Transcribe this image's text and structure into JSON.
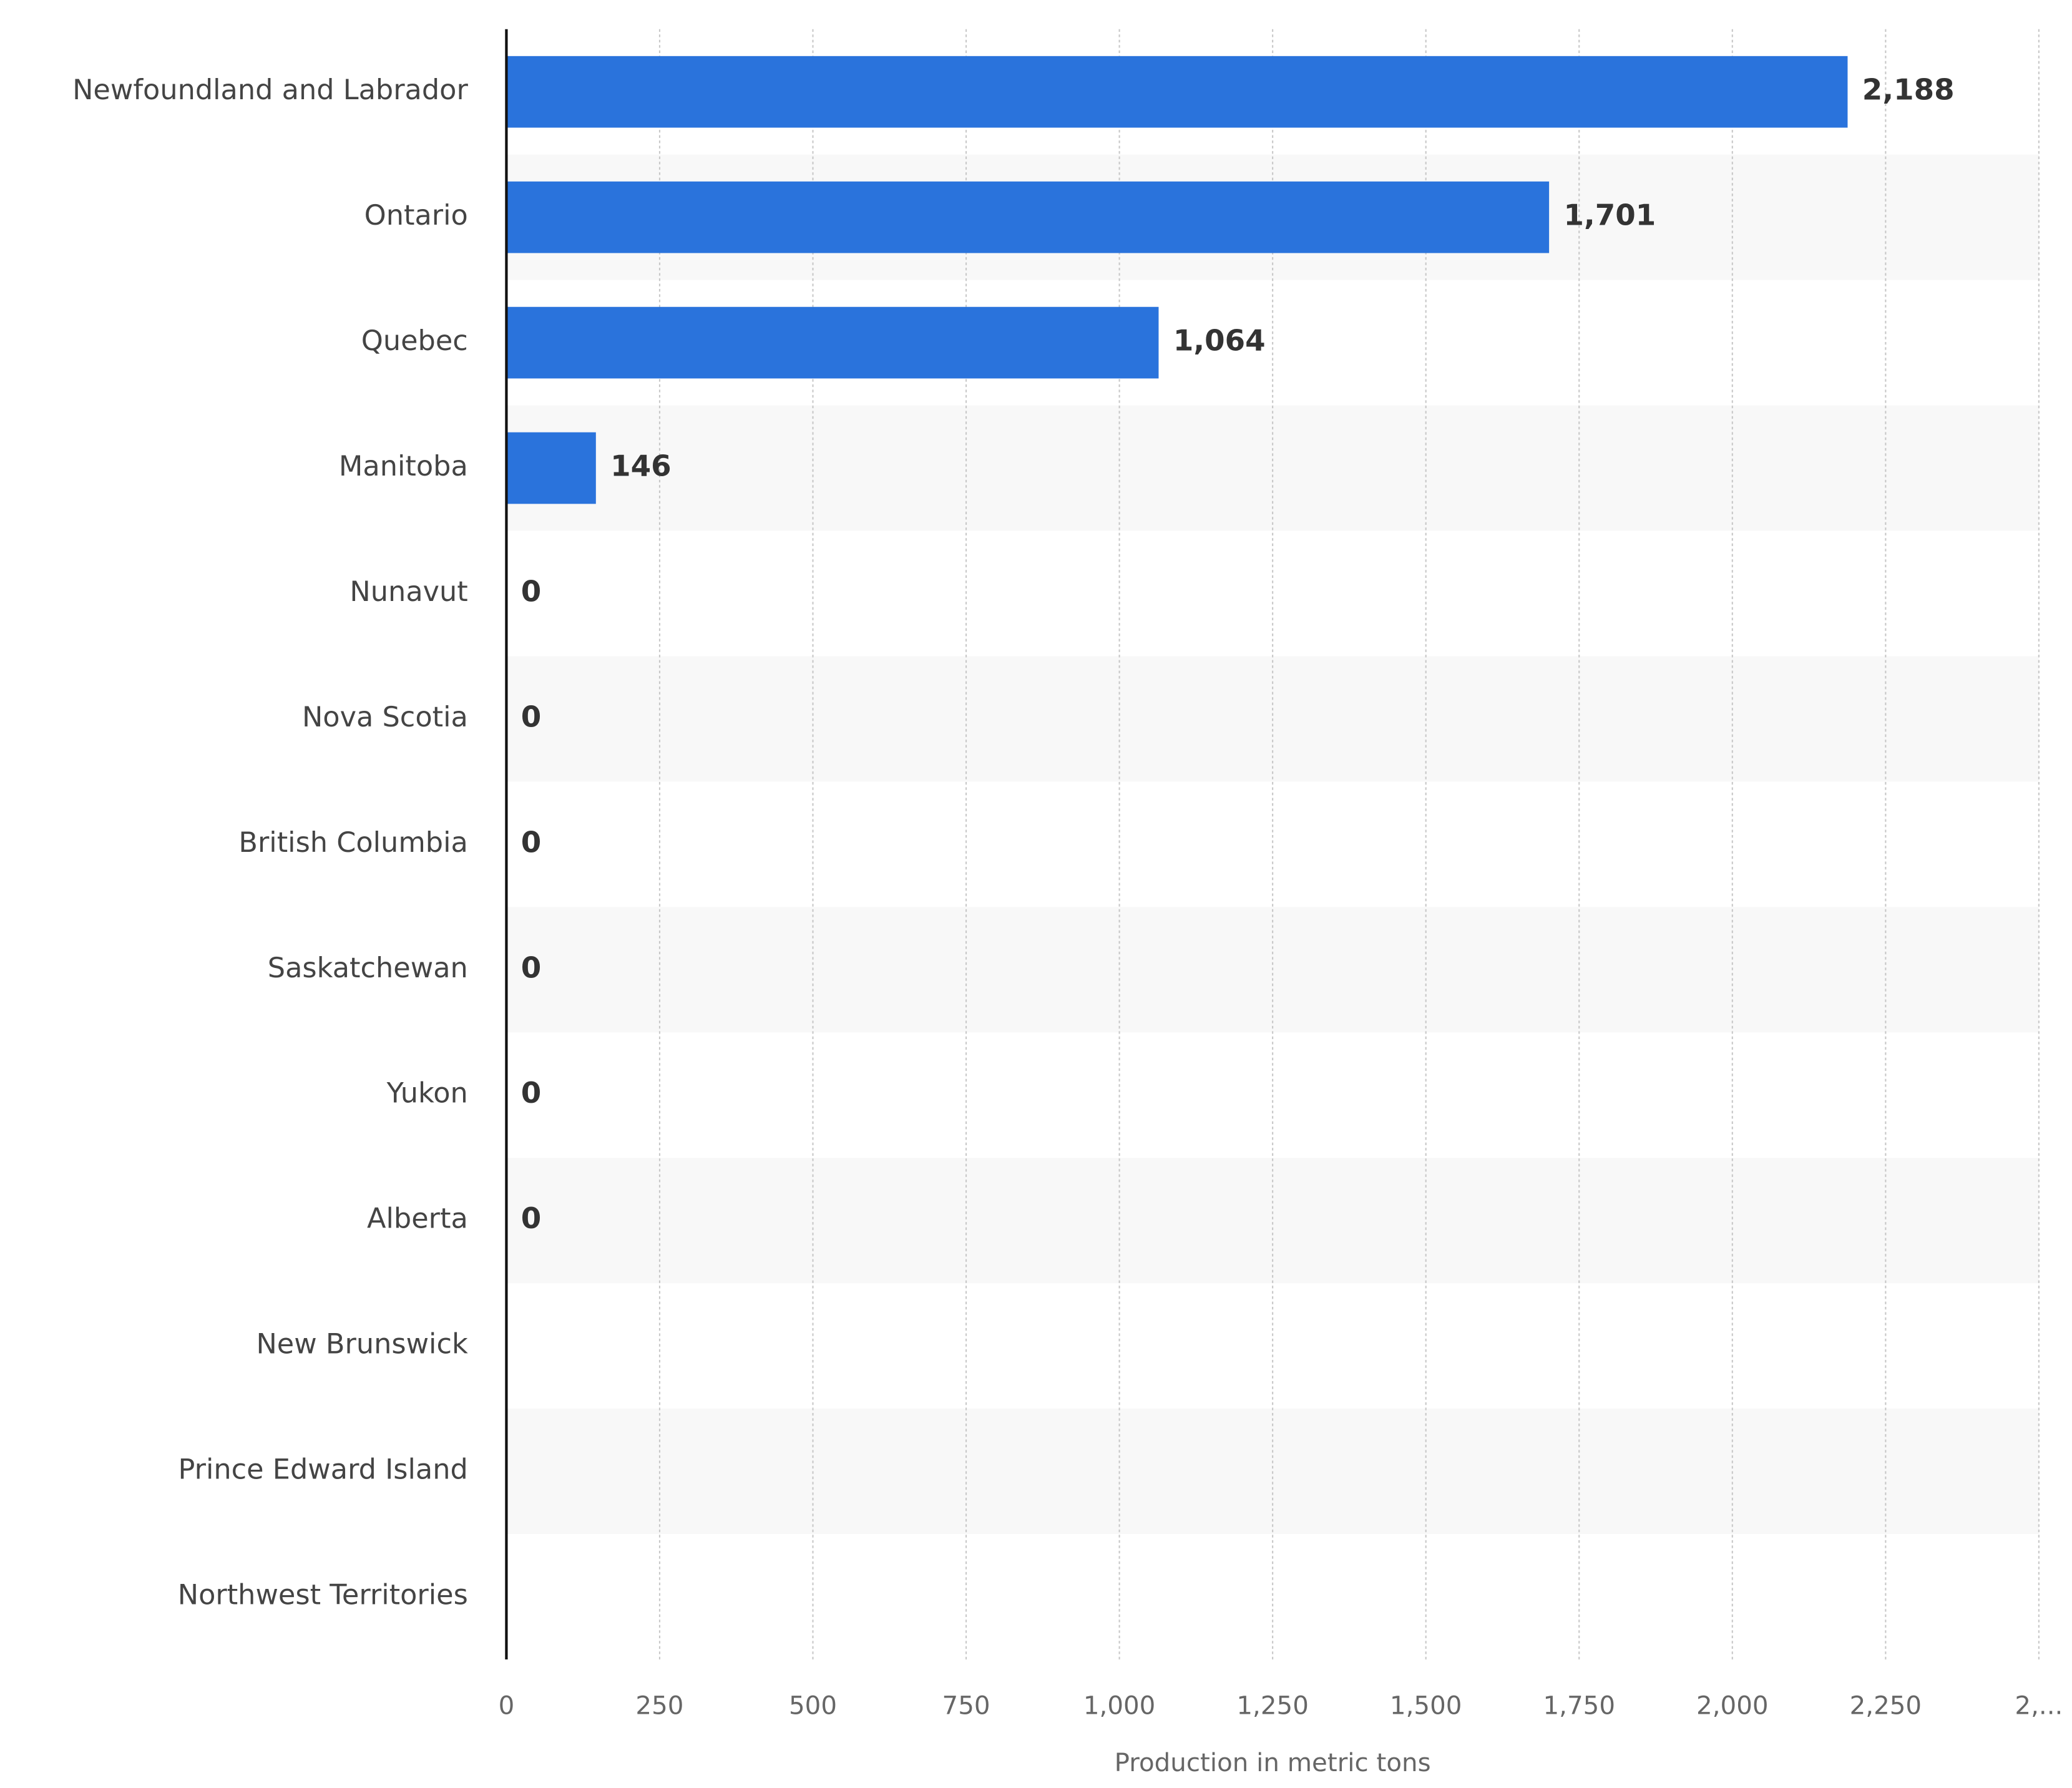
{
  "chart_data": {
    "type": "hbar",
    "categories": [
      "Newfoundland and Labrador",
      "Ontario",
      "Quebec",
      "Manitoba",
      "Nunavut",
      "Nova Scotia",
      "British Columbia",
      "Saskatchewan",
      "Yukon",
      "Alberta",
      "New Brunswick",
      "Prince Edward Island",
      "Northwest Territories"
    ],
    "values": [
      2188,
      1701,
      1064,
      146,
      0,
      0,
      0,
      0,
      0,
      0,
      null,
      null,
      null
    ],
    "value_labels": [
      "2,188",
      "1,701",
      "1,064",
      "146",
      "0",
      "0",
      "0",
      "0",
      "0",
      "0",
      null,
      null,
      null
    ],
    "color": "#2a73dc",
    "xlabel": "Production in metric tons",
    "xlim": [
      0,
      2500
    ],
    "xticks": [
      0,
      250,
      500,
      750,
      {
        "value": 1000,
        "label": "1,000"
      },
      {
        "value": 1250,
        "label": "1,250"
      },
      {
        "value": 1500,
        "label": "1,500"
      },
      {
        "value": 1750,
        "label": "1,750"
      },
      {
        "value": 2000,
        "label": "2,000"
      },
      {
        "value": 2250,
        "label": "2,250"
      },
      {
        "value": 2500,
        "label": "2,..."
      }
    ],
    "grid": true
  }
}
